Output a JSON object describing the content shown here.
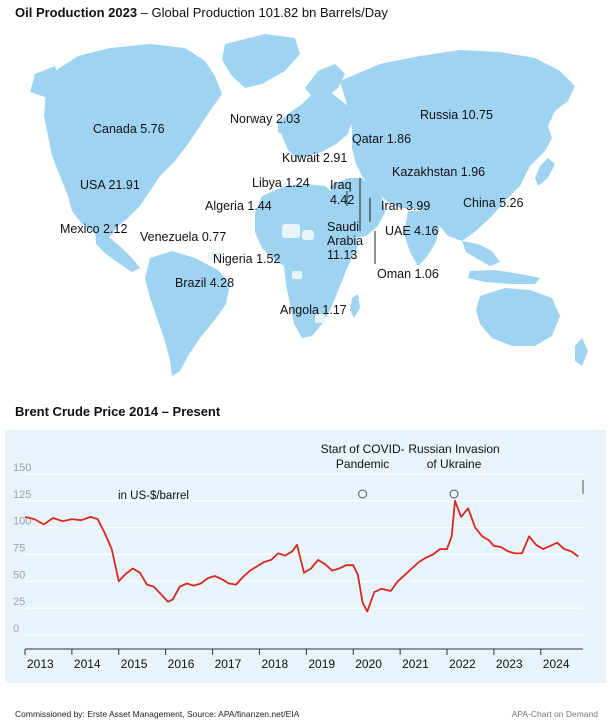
{
  "map": {
    "title_bold": "Oil Production 2023",
    "title_rest": " – Global Production 101.82 bn Barrels/Day",
    "land_color": "#9fd3f2",
    "labels": {
      "canada": "Canada 5.76",
      "usa": "USA 21.91",
      "mexico": "Mexico 2.12",
      "venezuela": "Venezuela 0.77",
      "brazil": "Brazil 4.28",
      "norway": "Norway 2.03",
      "russia": "Russia 10.75",
      "qatar": "Qatar 1.86",
      "kuwait": "Kuwait 2.91",
      "kazakhstan": "Kazakhstan 1.96",
      "libya": "Libya 1.24",
      "iraq_1": "Iraq",
      "iraq_2": "4.42",
      "algeria": "Algeria 1.44",
      "iran": "Iran 3.99",
      "china": "China 5.26",
      "saudi_1": "Saudi",
      "saudi_2": "Arabia",
      "saudi_3": "11.13",
      "uae": "UAE 4.16",
      "nigeria": "Nigeria 1.52",
      "oman": "Oman 1.06",
      "angola": "Angola 1.17"
    }
  },
  "chart_data": {
    "type": "line",
    "title": "Brent Crude Price 2014 – Present",
    "unit_label": "in US-$/barrel",
    "ylim": [
      0,
      150
    ],
    "yticks": [
      0,
      25,
      50,
      75,
      100,
      125,
      150
    ],
    "xlim": [
      2013.0,
      2024.9
    ],
    "xticks": [
      "2013",
      "2014",
      "2015",
      "2016",
      "2017",
      "2018",
      "2019",
      "2020",
      "2021",
      "2022",
      "2023",
      "2024"
    ],
    "grid": true,
    "line_color": "#d42a1e",
    "series": [
      {
        "x": [
          2013.0,
          2013.2,
          2013.4,
          2013.6,
          2013.8,
          2014.0,
          2014.2,
          2014.4,
          2014.55,
          2014.7,
          2014.85,
          2015.0,
          2015.15,
          2015.3,
          2015.45,
          2015.6,
          2015.75,
          2015.9,
          2016.05,
          2016.15,
          2016.3,
          2016.45,
          2016.6,
          2016.75,
          2016.9,
          2017.05,
          2017.2,
          2017.35,
          2017.5,
          2017.65,
          2017.8,
          2017.95,
          2018.1,
          2018.25,
          2018.4,
          2018.55,
          2018.7,
          2018.8,
          2018.95,
          2019.1,
          2019.25,
          2019.4,
          2019.55,
          2019.7,
          2019.85,
          2020.0,
          2020.1,
          2020.2,
          2020.3,
          2020.45,
          2020.6,
          2020.8,
          2020.95,
          2021.1,
          2021.25,
          2021.4,
          2021.55,
          2021.7,
          2021.85,
          2022.0,
          2022.1,
          2022.17,
          2022.3,
          2022.45,
          2022.6,
          2022.75,
          2022.9,
          2023.0,
          2023.15,
          2023.3,
          2023.45,
          2023.6,
          2023.75,
          2023.9,
          2024.05,
          2024.2,
          2024.35,
          2024.5,
          2024.65,
          2024.8
        ],
        "y": [
          110,
          108,
          103,
          109,
          106,
          108,
          107,
          110,
          108,
          95,
          80,
          50,
          57,
          62,
          58,
          47,
          45,
          38,
          31,
          33,
          45,
          48,
          46,
          48,
          53,
          55,
          52,
          48,
          47,
          54,
          60,
          64,
          68,
          70,
          76,
          74,
          78,
          84,
          58,
          62,
          70,
          66,
          60,
          62,
          65,
          65,
          56,
          30,
          22,
          40,
          43,
          41,
          50,
          56,
          62,
          68,
          72,
          75,
          80,
          80,
          92,
          125,
          110,
          118,
          100,
          92,
          88,
          83,
          82,
          78,
          76,
          76,
          92,
          84,
          80,
          83,
          86,
          80,
          78,
          73
        ]
      }
    ],
    "events": [
      {
        "x": 2020.2,
        "label_1": "Start of COVID-",
        "label_2": "Pandemic"
      },
      {
        "x": 2022.15,
        "label_1": "Russian Invasion",
        "label_2": "of Ukraine"
      }
    ]
  },
  "footer": {
    "source": "Commissioned by: Erste Asset Management, Source: APA/finanzen.net/EIA",
    "credit": "APA-Chart on Demand"
  }
}
